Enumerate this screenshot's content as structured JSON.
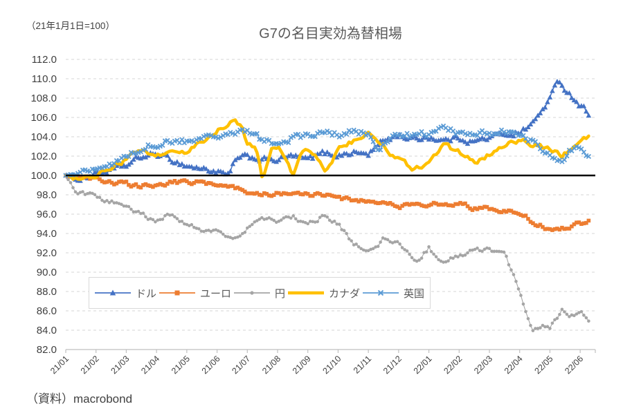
{
  "header": {
    "index_note": "（21年1月1日=100）",
    "title": "G7の名目実効為替相場"
  },
  "footer": {
    "source": "（資料）macrobond"
  },
  "chart_data": {
    "type": "line",
    "title": "G7の名目実効為替相場",
    "index_note": "（21年1月1日=100）",
    "source": "（資料）macrobond",
    "x_unit": "year/month (x = months since 21/01)",
    "xlim": [
      0,
      17.5
    ],
    "ylim": [
      82.0,
      112.0
    ],
    "y_tick_step": 2.0,
    "y_tick_labels": [
      "112.0",
      "110.0",
      "108.0",
      "106.0",
      "104.0",
      "102.0",
      "100.0",
      "98.0",
      "96.0",
      "94.0",
      "92.0",
      "90.0",
      "88.0",
      "86.0",
      "84.0",
      "82.0"
    ],
    "x_tick_labels": [
      "21/01",
      "21/02",
      "21/03",
      "21/04",
      "21/05",
      "21/06",
      "21/07",
      "21/08",
      "21/09",
      "21/10",
      "21/11",
      "21/12",
      "22/01",
      "22/02",
      "22/03",
      "22/04",
      "22/05",
      "22/06"
    ],
    "baseline_value": 100.0,
    "baseline_color": "#000000",
    "grid": "horizontal-dashed",
    "grid_color": "#d6d6d6",
    "axis_color": "#bfbfbf",
    "label_color": "#3f3f3f",
    "legend_position": "inside-bottom-left",
    "series": [
      {
        "label": "ドル",
        "name": "dollar",
        "color": "#4472C4",
        "marker": "triangle",
        "line_width": 1.5,
        "jitter": 0.5,
        "points": [
          [
            0,
            100.0
          ],
          [
            0.3,
            99.6
          ],
          [
            0.7,
            99.9
          ],
          [
            1,
            100.2
          ],
          [
            1.5,
            100.5
          ],
          [
            2,
            101.0
          ],
          [
            2.5,
            101.9
          ],
          [
            3,
            102.2
          ],
          [
            3.5,
            101.6
          ],
          [
            4,
            101.0
          ],
          [
            4.5,
            100.7
          ],
          [
            5,
            100.4
          ],
          [
            5.4,
            99.9
          ],
          [
            5.6,
            101.6
          ],
          [
            6,
            101.9
          ],
          [
            6.5,
            101.7
          ],
          [
            7,
            101.6
          ],
          [
            7.5,
            102.0
          ],
          [
            8,
            101.6
          ],
          [
            8.5,
            102.3
          ],
          [
            9,
            102.1
          ],
          [
            9.5,
            102.4
          ],
          [
            10,
            102.2
          ],
          [
            10.5,
            103.6
          ],
          [
            11,
            104.2
          ],
          [
            11.5,
            103.7
          ],
          [
            12,
            104.0
          ],
          [
            12.5,
            103.6
          ],
          [
            13,
            103.9
          ],
          [
            13.5,
            103.5
          ],
          [
            14,
            103.9
          ],
          [
            14.5,
            104.3
          ],
          [
            15,
            104.4
          ],
          [
            15.5,
            105.6
          ],
          [
            16,
            108.0
          ],
          [
            16.3,
            109.8
          ],
          [
            16.6,
            108.6
          ],
          [
            17,
            107.3
          ],
          [
            17.3,
            106.4
          ]
        ]
      },
      {
        "label": "ユーロ",
        "name": "euro",
        "color": "#ED7D31",
        "marker": "square",
        "line_width": 1.5,
        "jitter": 0.38,
        "points": [
          [
            0,
            100.0
          ],
          [
            0.5,
            99.7
          ],
          [
            1,
            99.6
          ],
          [
            1.5,
            99.4
          ],
          [
            2,
            99.1
          ],
          [
            2.5,
            98.9
          ],
          [
            3,
            99.0
          ],
          [
            3.5,
            99.2
          ],
          [
            4,
            99.3
          ],
          [
            4.5,
            99.2
          ],
          [
            5,
            99.1
          ],
          [
            5.5,
            98.8
          ],
          [
            6,
            98.4
          ],
          [
            6.5,
            98.2
          ],
          [
            7,
            98.1
          ],
          [
            7.5,
            98.0
          ],
          [
            8,
            98.1
          ],
          [
            8.5,
            97.9
          ],
          [
            9,
            97.7
          ],
          [
            9.5,
            97.5
          ],
          [
            10,
            97.4
          ],
          [
            10.5,
            97.0
          ],
          [
            11,
            96.8
          ],
          [
            11.5,
            97.0
          ],
          [
            12,
            97.1
          ],
          [
            12.5,
            96.9
          ],
          [
            13,
            97.2
          ],
          [
            13.5,
            96.6
          ],
          [
            14,
            96.5
          ],
          [
            14.5,
            96.3
          ],
          [
            15,
            96.1
          ],
          [
            15.5,
            95.1
          ],
          [
            16,
            94.4
          ],
          [
            16.5,
            94.5
          ],
          [
            17,
            95.0
          ],
          [
            17.3,
            95.4
          ]
        ]
      },
      {
        "label": "円",
        "name": "yen",
        "color": "#A5A5A5",
        "marker": "circle",
        "line_width": 1.1,
        "jitter": 0.42,
        "points": [
          [
            0,
            100.0
          ],
          [
            0.3,
            98.4
          ],
          [
            0.7,
            98.0
          ],
          [
            1,
            97.8
          ],
          [
            1.5,
            97.3
          ],
          [
            2,
            96.8
          ],
          [
            2.5,
            95.9
          ],
          [
            3,
            95.4
          ],
          [
            3.3,
            95.9
          ],
          [
            3.7,
            95.4
          ],
          [
            4,
            95.1
          ],
          [
            4.5,
            94.4
          ],
          [
            5,
            94.1
          ],
          [
            5.5,
            93.5
          ],
          [
            6,
            94.6
          ],
          [
            6.5,
            95.6
          ],
          [
            7,
            95.1
          ],
          [
            7.5,
            95.7
          ],
          [
            8,
            95.0
          ],
          [
            8.5,
            95.8
          ],
          [
            9,
            94.9
          ],
          [
            9.5,
            93.0
          ],
          [
            10,
            92.0
          ],
          [
            10.5,
            93.4
          ],
          [
            11,
            92.9
          ],
          [
            11.6,
            91.2
          ],
          [
            12,
            92.5
          ],
          [
            12.4,
            91.2
          ],
          [
            13,
            91.7
          ],
          [
            13.5,
            92.3
          ],
          [
            14,
            92.4
          ],
          [
            14.5,
            91.8
          ],
          [
            15,
            88.0
          ],
          [
            15.4,
            83.9
          ],
          [
            15.7,
            84.6
          ],
          [
            16,
            84.2
          ],
          [
            16.4,
            86.0
          ],
          [
            16.7,
            85.6
          ],
          [
            17,
            85.9
          ],
          [
            17.3,
            85.1
          ]
        ]
      },
      {
        "label": "カナダ",
        "name": "canada",
        "color": "#FFC000",
        "marker": "none",
        "line_width": 4.5,
        "jitter": 0.5,
        "points": [
          [
            0,
            100.0
          ],
          [
            0.4,
            99.6
          ],
          [
            1,
            100.0
          ],
          [
            1.5,
            100.9
          ],
          [
            2,
            101.7
          ],
          [
            2.4,
            102.7
          ],
          [
            3,
            102.2
          ],
          [
            3.5,
            102.6
          ],
          [
            4,
            102.5
          ],
          [
            4.5,
            103.4
          ],
          [
            5,
            104.6
          ],
          [
            5.5,
            105.6
          ],
          [
            5.8,
            105.2
          ],
          [
            6,
            103.4
          ],
          [
            6.3,
            102.8
          ],
          [
            6.5,
            99.6
          ],
          [
            6.8,
            102.9
          ],
          [
            7,
            103.1
          ],
          [
            7.5,
            99.9
          ],
          [
            7.8,
            102.7
          ],
          [
            8.2,
            102.4
          ],
          [
            8.6,
            100.4
          ],
          [
            9,
            102.6
          ],
          [
            9.5,
            103.6
          ],
          [
            10,
            104.2
          ],
          [
            10.5,
            103.0
          ],
          [
            11,
            101.6
          ],
          [
            11.5,
            100.6
          ],
          [
            12,
            101.4
          ],
          [
            12.5,
            103.1
          ],
          [
            13,
            102.4
          ],
          [
            13.5,
            101.3
          ],
          [
            14,
            102.1
          ],
          [
            14.5,
            103.3
          ],
          [
            15,
            103.7
          ],
          [
            15.5,
            103.2
          ],
          [
            16,
            102.7
          ],
          [
            16.4,
            102.1
          ],
          [
            17,
            103.3
          ],
          [
            17.3,
            103.9
          ]
        ]
      },
      {
        "label": "英国",
        "name": "uk",
        "color": "#5B9BD5",
        "marker": "x",
        "line_width": 1.5,
        "jitter": 0.55,
        "points": [
          [
            0,
            100.0
          ],
          [
            0.5,
            100.2
          ],
          [
            1,
            100.5
          ],
          [
            1.5,
            101.2
          ],
          [
            2,
            102.0
          ],
          [
            2.5,
            102.9
          ],
          [
            3,
            103.3
          ],
          [
            3.5,
            103.6
          ],
          [
            4,
            103.5
          ],
          [
            4.5,
            104.0
          ],
          [
            5,
            104.2
          ],
          [
            5.5,
            104.5
          ],
          [
            6,
            104.6
          ],
          [
            6.4,
            103.8
          ],
          [
            7,
            103.2
          ],
          [
            7.5,
            103.9
          ],
          [
            8,
            104.1
          ],
          [
            8.5,
            104.4
          ],
          [
            9,
            104.2
          ],
          [
            9.5,
            104.6
          ],
          [
            10,
            104.2
          ],
          [
            10.3,
            102.7
          ],
          [
            10.7,
            103.6
          ],
          [
            11,
            104.3
          ],
          [
            11.5,
            104.0
          ],
          [
            12,
            104.4
          ],
          [
            12.5,
            104.8
          ],
          [
            13,
            104.4
          ],
          [
            13.5,
            104.1
          ],
          [
            14,
            104.4
          ],
          [
            14.5,
            104.6
          ],
          [
            15,
            104.2
          ],
          [
            15.5,
            103.3
          ],
          [
            16,
            102.2
          ],
          [
            16.4,
            101.2
          ],
          [
            16.7,
            102.6
          ],
          [
            17,
            102.7
          ],
          [
            17.15,
            101.9
          ],
          [
            17.3,
            102.1
          ]
        ]
      }
    ]
  }
}
